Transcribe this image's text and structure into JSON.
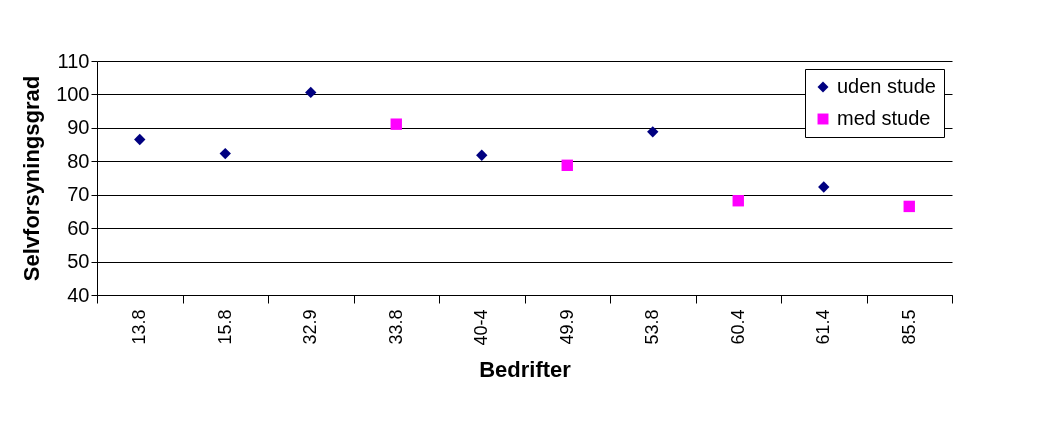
{
  "chart_data": {
    "type": "scatter",
    "xlabel": "Bedrifter",
    "ylabel": "Selvforsyningsgrad",
    "categories": [
      "13.8",
      "15.8",
      "32.9",
      "33.8",
      "40-4",
      "49.9",
      "53.8",
      "60.4",
      "61.4",
      "85.5"
    ],
    "series": [
      {
        "name": "uden stude",
        "color": "#000080",
        "marker": "diamond",
        "values": [
          86.5,
          82.3,
          100.6,
          null,
          81.8,
          null,
          88.8,
          null,
          72.3,
          null
        ]
      },
      {
        "name": "med stude",
        "color": "#ff00ff",
        "marker": "square",
        "values": [
          null,
          null,
          null,
          91.1,
          null,
          78.8,
          null,
          68.2,
          null,
          66.5
        ]
      }
    ],
    "ylim": [
      40,
      110
    ],
    "yticks": [
      40,
      50,
      60,
      70,
      80,
      90,
      100,
      110
    ],
    "grid": "y",
    "legend": "top right"
  }
}
